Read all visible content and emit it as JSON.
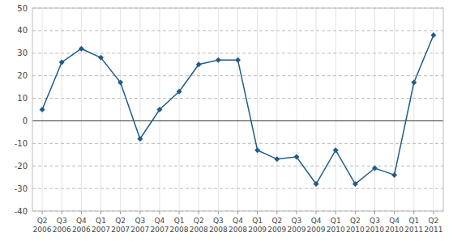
{
  "chart_data": {
    "type": "line",
    "categories": [
      "Q2\n2006",
      "Q3\n2006",
      "Q4\n2006",
      "Q1\n2007",
      "Q2\n2007",
      "Q3\n2007",
      "Q4\n2007",
      "Q1\n2008",
      "Q2\n2008",
      "Q3\n2008",
      "Q4\n2008",
      "Q1\n2009",
      "Q2\n2009",
      "Q3\n2009",
      "Q4\n2009",
      "Q1\n2010",
      "Q2\n2010",
      "Q3\n2010",
      "Q4\n2010",
      "Q1\n2011",
      "Q2\n2011"
    ],
    "values": [
      5,
      26,
      32,
      28,
      17,
      -8,
      5,
      13,
      25,
      27,
      27,
      -13,
      -17,
      -16,
      -28,
      -13,
      -28,
      -21,
      -24,
      17,
      38
    ],
    "color": "#1F5C8B",
    "marker": "diamond",
    "ylim": [
      -40,
      50
    ],
    "yticks": [
      -40,
      -30,
      -20,
      -10,
      0,
      10,
      20,
      30,
      40,
      50
    ],
    "grid": true
  }
}
